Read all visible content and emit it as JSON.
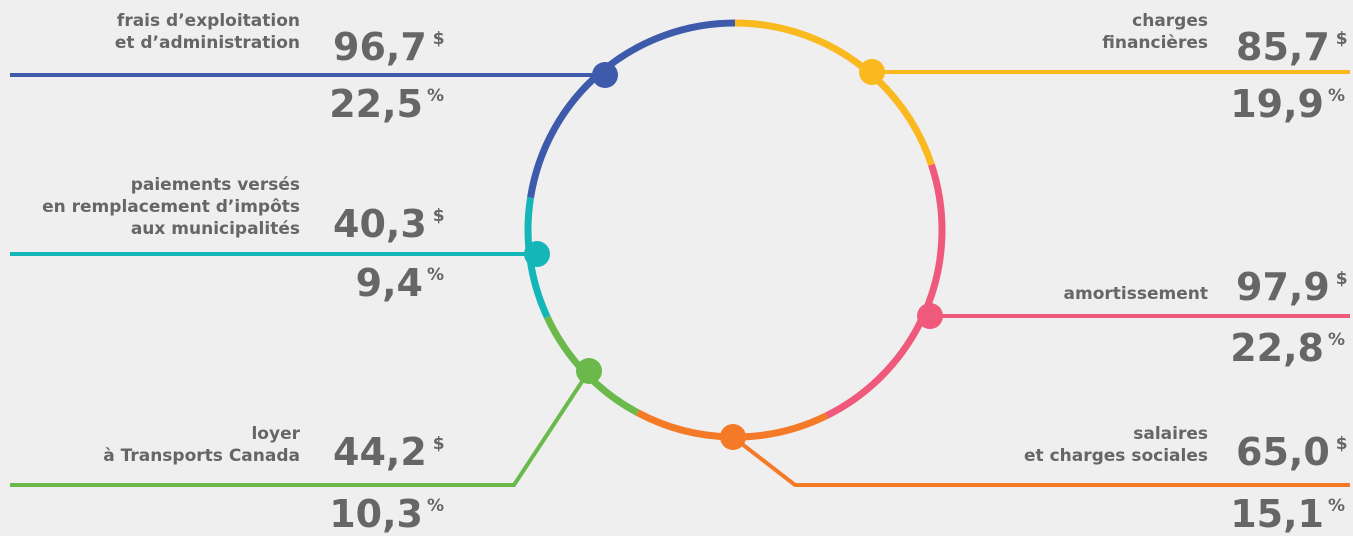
{
  "chart_data": {
    "type": "pie",
    "style": "ring",
    "currency_unit": "$",
    "percent_unit": "%",
    "segments": [
      {
        "key": "frais",
        "label_lines": [
          "frais d’exploitation",
          "et d’administration"
        ],
        "value_text": "96,7",
        "value": 96.7,
        "percent_text": "22,5",
        "percent": 22.5,
        "color": "#3e5bab"
      },
      {
        "key": "charges",
        "label_lines": [
          "charges",
          "financières"
        ],
        "value_text": "85,7",
        "value": 85.7,
        "percent_text": "19,9",
        "percent": 19.9,
        "color": "#fbb920"
      },
      {
        "key": "paiements",
        "label_lines": [
          "paiements versés",
          "en remplacement d’impôts",
          "aux municipalités"
        ],
        "value_text": "40,3",
        "value": 40.3,
        "percent_text": "9,4",
        "percent": 9.4,
        "color": "#15b6b7"
      },
      {
        "key": "amortissement",
        "label_lines": [
          "amortissement"
        ],
        "value_text": "97,9",
        "value": 97.9,
        "percent_text": "22,8",
        "percent": 22.8,
        "color": "#ef5a7c"
      },
      {
        "key": "loyer",
        "label_lines": [
          "loyer",
          "à Transports Canada"
        ],
        "value_text": "44,2",
        "value": 44.2,
        "percent_text": "10,3",
        "percent": 10.3,
        "color": "#6ab94a"
      },
      {
        "key": "salaires",
        "label_lines": [
          "salaires",
          "et charges sociales"
        ],
        "value_text": "65,0",
        "value": 65.0,
        "percent_text": "15,1",
        "percent": 15.1,
        "color": "#f47a28"
      }
    ]
  }
}
